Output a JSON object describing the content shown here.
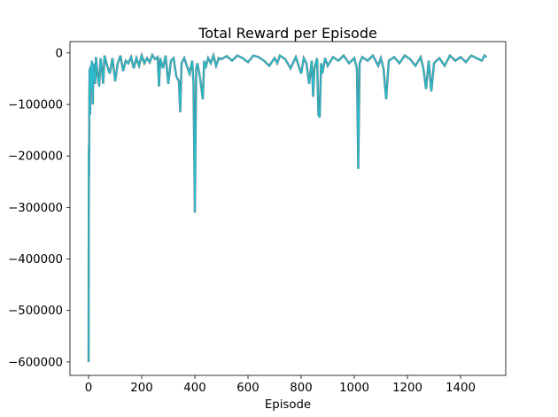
{
  "chart_data": {
    "type": "line",
    "title": "Total Reward per Episode",
    "xlabel": "Episode",
    "ylabel": "",
    "xlim": [
      -70,
      1570
    ],
    "ylim": [
      -626000,
      22000
    ],
    "xticks": [
      0,
      200,
      400,
      600,
      800,
      1000,
      1200,
      1400
    ],
    "yticks": [
      0,
      -100000,
      -200000,
      -300000,
      -400000,
      -500000,
      -600000
    ],
    "grid": false,
    "legend": "none",
    "colors": {
      "series": "#2bbbcc",
      "shadow": "#5a6a6a",
      "axis": "#000000"
    },
    "series": [
      {
        "points": [
          [
            0,
            -600000
          ],
          [
            1,
            -180000
          ],
          [
            2,
            -240000
          ],
          [
            3,
            -80000
          ],
          [
            4,
            -30000
          ],
          [
            5,
            -60000
          ],
          [
            6,
            -120000
          ],
          [
            7,
            -35000
          ],
          [
            8,
            -25000
          ],
          [
            10,
            -70000
          ],
          [
            12,
            -15000
          ],
          [
            14,
            -40000
          ],
          [
            16,
            -100000
          ],
          [
            18,
            -20000
          ],
          [
            20,
            -35000
          ],
          [
            25,
            -60000
          ],
          [
            28,
            -8000
          ],
          [
            30,
            -20000
          ],
          [
            35,
            -45000
          ],
          [
            40,
            -65000
          ],
          [
            45,
            -10000
          ],
          [
            50,
            -30000
          ],
          [
            55,
            -60000
          ],
          [
            60,
            -5000
          ],
          [
            70,
            -25000
          ],
          [
            80,
            -40000
          ],
          [
            90,
            -10000
          ],
          [
            100,
            -55000
          ],
          [
            110,
            -20000
          ],
          [
            120,
            -5000
          ],
          [
            130,
            -35000
          ],
          [
            140,
            -15000
          ],
          [
            150,
            -20000
          ],
          [
            160,
            -8000
          ],
          [
            170,
            -30000
          ],
          [
            180,
            -10000
          ],
          [
            190,
            -25000
          ],
          [
            200,
            -5000
          ],
          [
            210,
            -20000
          ],
          [
            220,
            -10000
          ],
          [
            230,
            -18000
          ],
          [
            240,
            -4000
          ],
          [
            250,
            -12000
          ],
          [
            260,
            -8000
          ],
          [
            265,
            -65000
          ],
          [
            270,
            -10000
          ],
          [
            280,
            -30000
          ],
          [
            290,
            -5000
          ],
          [
            300,
            -60000
          ],
          [
            310,
            -15000
          ],
          [
            320,
            -10000
          ],
          [
            330,
            -45000
          ],
          [
            340,
            -55000
          ],
          [
            345,
            -115000
          ],
          [
            350,
            -20000
          ],
          [
            360,
            -10000
          ],
          [
            370,
            -25000
          ],
          [
            380,
            -40000
          ],
          [
            390,
            -15000
          ],
          [
            395,
            -60000
          ],
          [
            400,
            -310000
          ],
          [
            405,
            -30000
          ],
          [
            410,
            -20000
          ],
          [
            420,
            -50000
          ],
          [
            430,
            -90000
          ],
          [
            435,
            -15000
          ],
          [
            440,
            -30000
          ],
          [
            450,
            -10000
          ],
          [
            460,
            -20000
          ],
          [
            470,
            -5000
          ],
          [
            480,
            -25000
          ],
          [
            490,
            -10000
          ],
          [
            500,
            -12000
          ],
          [
            520,
            -6000
          ],
          [
            540,
            -15000
          ],
          [
            560,
            -5000
          ],
          [
            580,
            -10000
          ],
          [
            600,
            -18000
          ],
          [
            620,
            -5000
          ],
          [
            640,
            -8000
          ],
          [
            660,
            -15000
          ],
          [
            680,
            -25000
          ],
          [
            700,
            -10000
          ],
          [
            710,
            -20000
          ],
          [
            720,
            -5000
          ],
          [
            740,
            -12000
          ],
          [
            760,
            -30000
          ],
          [
            780,
            -8000
          ],
          [
            800,
            -40000
          ],
          [
            810,
            -10000
          ],
          [
            820,
            -20000
          ],
          [
            830,
            -60000
          ],
          [
            840,
            -15000
          ],
          [
            845,
            -85000
          ],
          [
            850,
            -30000
          ],
          [
            860,
            -10000
          ],
          [
            865,
            -120000
          ],
          [
            870,
            -125000
          ],
          [
            875,
            -20000
          ],
          [
            880,
            -40000
          ],
          [
            890,
            -10000
          ],
          [
            900,
            -25000
          ],
          [
            920,
            -8000
          ],
          [
            940,
            -15000
          ],
          [
            960,
            -5000
          ],
          [
            980,
            -20000
          ],
          [
            1000,
            -10000
          ],
          [
            1010,
            -30000
          ],
          [
            1015,
            -225000
          ],
          [
            1020,
            -20000
          ],
          [
            1030,
            -8000
          ],
          [
            1050,
            -15000
          ],
          [
            1070,
            -5000
          ],
          [
            1090,
            -25000
          ],
          [
            1100,
            -10000
          ],
          [
            1110,
            -30000
          ],
          [
            1120,
            -90000
          ],
          [
            1130,
            -15000
          ],
          [
            1150,
            -8000
          ],
          [
            1170,
            -20000
          ],
          [
            1190,
            -5000
          ],
          [
            1210,
            -12000
          ],
          [
            1230,
            -25000
          ],
          [
            1250,
            -8000
          ],
          [
            1260,
            -30000
          ],
          [
            1270,
            -70000
          ],
          [
            1280,
            -15000
          ],
          [
            1290,
            -75000
          ],
          [
            1300,
            -20000
          ],
          [
            1320,
            -10000
          ],
          [
            1340,
            -25000
          ],
          [
            1360,
            -5000
          ],
          [
            1380,
            -15000
          ],
          [
            1400,
            -8000
          ],
          [
            1420,
            -18000
          ],
          [
            1440,
            -5000
          ],
          [
            1460,
            -10000
          ],
          [
            1480,
            -15000
          ],
          [
            1490,
            -5000
          ],
          [
            1498,
            -8000
          ]
        ]
      }
    ]
  }
}
